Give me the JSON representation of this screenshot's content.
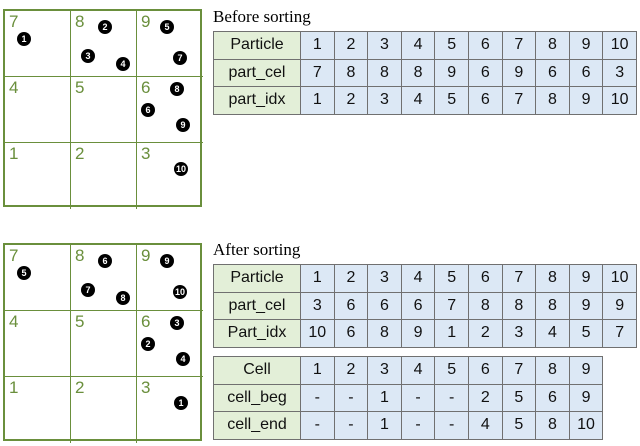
{
  "before": {
    "caption": "Before sorting",
    "grid": {
      "cell_labels": [
        "7",
        "8",
        "9",
        "4",
        "5",
        "6",
        "1",
        "2",
        "3"
      ],
      "particles": [
        "1",
        "2",
        "3",
        "4",
        "5",
        "7",
        "8",
        "6",
        "9",
        "10"
      ]
    },
    "table": [
      {
        "label": "Particle",
        "values": [
          "1",
          "2",
          "3",
          "4",
          "5",
          "6",
          "7",
          "8",
          "9",
          "10"
        ]
      },
      {
        "label": "part_cel",
        "values": [
          "7",
          "8",
          "8",
          "8",
          "9",
          "6",
          "9",
          "6",
          "6",
          "3"
        ]
      },
      {
        "label": "part_idx",
        "values": [
          "1",
          "2",
          "3",
          "4",
          "5",
          "6",
          "7",
          "8",
          "9",
          "10"
        ]
      }
    ]
  },
  "after": {
    "caption": "After sorting",
    "grid": {
      "cell_labels": [
        "7",
        "8",
        "9",
        "4",
        "5",
        "6",
        "1",
        "2",
        "3"
      ],
      "particles": [
        "5",
        "6",
        "7",
        "8",
        "9",
        "10",
        "3",
        "2",
        "4",
        "1"
      ]
    },
    "table": [
      {
        "label": "Particle",
        "values": [
          "1",
          "2",
          "3",
          "4",
          "5",
          "6",
          "7",
          "8",
          "9",
          "10"
        ]
      },
      {
        "label": "part_cel",
        "values": [
          "3",
          "6",
          "6",
          "6",
          "7",
          "8",
          "8",
          "8",
          "9",
          "9"
        ]
      },
      {
        "label": "Part_idx",
        "values": [
          "10",
          "6",
          "8",
          "9",
          "1",
          "2",
          "3",
          "4",
          "5",
          "7"
        ]
      }
    ],
    "cell_table": [
      {
        "label": "Cell",
        "values": [
          "1",
          "2",
          "3",
          "4",
          "5",
          "6",
          "7",
          "8",
          "9"
        ]
      },
      {
        "label": "cell_beg",
        "values": [
          "-",
          "-",
          "1",
          "-",
          "-",
          "2",
          "5",
          "6",
          "9"
        ]
      },
      {
        "label": "cell_end",
        "values": [
          "-",
          "-",
          "1",
          "-",
          "-",
          "4",
          "5",
          "8",
          "10"
        ]
      }
    ]
  },
  "colors": {
    "grid": "#6a8f3c",
    "header_bg": "#e3efd8",
    "value_bg": "#dce8f5"
  }
}
